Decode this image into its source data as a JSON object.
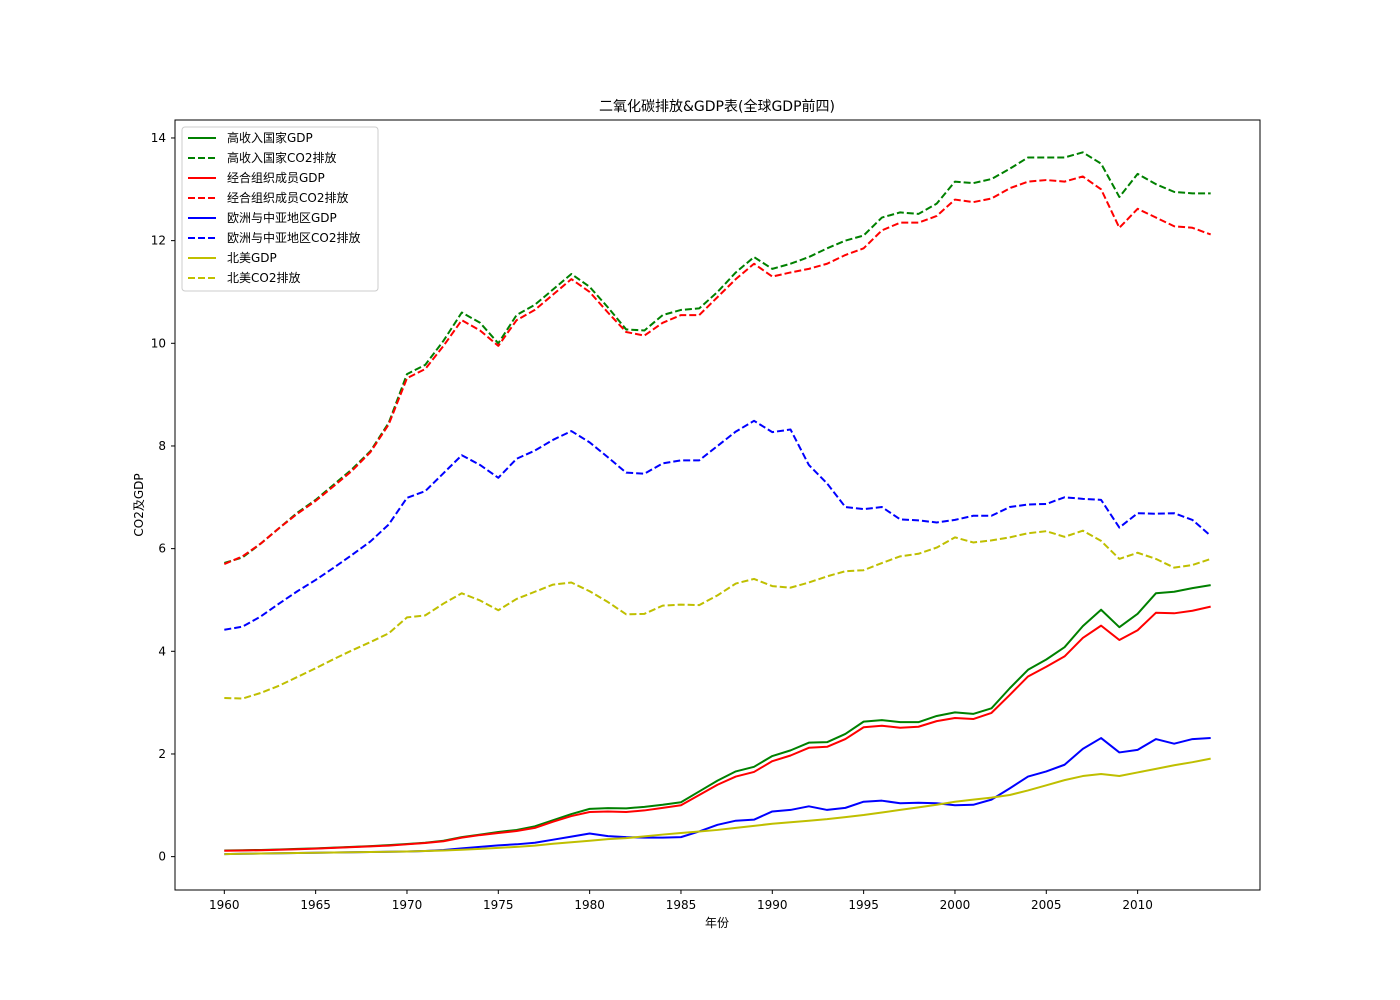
{
  "chart_data": {
    "type": "line",
    "title": "二氧化碳排放&GDP表(全球GDP前四)",
    "xlabel": "年份",
    "ylabel": "CO2及GDP",
    "xlim": [
      1957.3,
      2016.7
    ],
    "ylim": [
      -0.65,
      14.35
    ],
    "x_ticks": [
      1960,
      1965,
      1970,
      1975,
      1980,
      1985,
      1990,
      1995,
      2000,
      2005,
      2010
    ],
    "y_ticks": [
      0,
      2,
      4,
      6,
      8,
      10,
      12,
      14
    ],
    "grid": false,
    "legend_position": "top-left",
    "x": [
      1960,
      1961,
      1962,
      1963,
      1964,
      1965,
      1966,
      1967,
      1968,
      1969,
      1970,
      1971,
      1972,
      1973,
      1974,
      1975,
      1976,
      1977,
      1978,
      1979,
      1980,
      1981,
      1982,
      1983,
      1984,
      1985,
      1986,
      1987,
      1988,
      1989,
      1990,
      1991,
      1992,
      1993,
      1994,
      1995,
      1996,
      1997,
      1998,
      1999,
      2000,
      2001,
      2002,
      2003,
      2004,
      2005,
      2006,
      2007,
      2008,
      2009,
      2010,
      2011,
      2012,
      2013,
      2014
    ],
    "series": [
      {
        "name": "高收入国家GDP",
        "color": "#008000",
        "dash": false,
        "values": [
          0.12,
          0.125,
          0.13,
          0.14,
          0.15,
          0.16,
          0.175,
          0.19,
          0.205,
          0.225,
          0.245,
          0.27,
          0.31,
          0.38,
          0.43,
          0.48,
          0.52,
          0.59,
          0.71,
          0.83,
          0.93,
          0.945,
          0.94,
          0.97,
          1.01,
          1.06,
          1.27,
          1.48,
          1.66,
          1.75,
          1.96,
          2.07,
          2.22,
          2.23,
          2.39,
          2.63,
          2.66,
          2.62,
          2.62,
          2.74,
          2.81,
          2.78,
          2.89,
          3.28,
          3.64,
          3.84,
          4.08,
          4.49,
          4.81,
          4.47,
          4.73,
          5.13,
          5.16,
          5.23,
          5.29
        ]
      },
      {
        "name": "高收入国家CO2排放",
        "color": "#008000",
        "dash": true,
        "values": [
          5.72,
          5.83,
          6.1,
          6.4,
          6.7,
          6.95,
          7.25,
          7.55,
          7.9,
          8.45,
          9.4,
          9.58,
          10.05,
          10.6,
          10.4,
          10.0,
          10.55,
          10.75,
          11.05,
          11.35,
          11.1,
          10.7,
          10.27,
          10.25,
          10.55,
          10.65,
          10.68,
          11.0,
          11.38,
          11.68,
          11.45,
          11.55,
          11.68,
          11.85,
          12.0,
          12.1,
          12.45,
          12.55,
          12.52,
          12.72,
          13.15,
          13.12,
          13.2,
          13.4,
          13.62,
          13.62,
          13.62,
          13.72,
          13.5,
          12.85,
          13.3,
          13.1,
          12.95,
          12.92,
          12.92
        ]
      },
      {
        "name": "经合组织成员GDP",
        "color": "#ff0000",
        "dash": false,
        "values": [
          0.115,
          0.12,
          0.125,
          0.135,
          0.145,
          0.155,
          0.17,
          0.185,
          0.2,
          0.215,
          0.24,
          0.265,
          0.3,
          0.37,
          0.42,
          0.46,
          0.5,
          0.56,
          0.68,
          0.79,
          0.87,
          0.88,
          0.87,
          0.9,
          0.95,
          1.0,
          1.2,
          1.4,
          1.56,
          1.65,
          1.86,
          1.97,
          2.12,
          2.14,
          2.29,
          2.52,
          2.55,
          2.51,
          2.53,
          2.64,
          2.7,
          2.68,
          2.8,
          3.15,
          3.51,
          3.7,
          3.9,
          4.26,
          4.5,
          4.22,
          4.41,
          4.75,
          4.74,
          4.79,
          4.87
        ]
      },
      {
        "name": "经合组织成员CO2排放",
        "color": "#ff0000",
        "dash": true,
        "values": [
          5.7,
          5.85,
          6.1,
          6.4,
          6.68,
          6.93,
          7.22,
          7.52,
          7.88,
          8.42,
          9.32,
          9.5,
          9.95,
          10.45,
          10.25,
          9.95,
          10.45,
          10.65,
          10.95,
          11.25,
          11.0,
          10.6,
          10.22,
          10.15,
          10.4,
          10.55,
          10.55,
          10.9,
          11.25,
          11.55,
          11.3,
          11.38,
          11.45,
          11.55,
          11.72,
          11.85,
          12.2,
          12.35,
          12.35,
          12.48,
          12.8,
          12.75,
          12.82,
          13.02,
          13.15,
          13.18,
          13.15,
          13.25,
          13.0,
          12.25,
          12.62,
          12.45,
          12.28,
          12.25,
          12.12
        ]
      },
      {
        "name": "欧洲与中亚地区GDP",
        "color": "#0000ff",
        "dash": false,
        "values": [
          0.05,
          0.055,
          0.06,
          0.065,
          0.07,
          0.075,
          0.08,
          0.085,
          0.09,
          0.095,
          0.1,
          0.11,
          0.13,
          0.16,
          0.19,
          0.22,
          0.24,
          0.27,
          0.33,
          0.39,
          0.45,
          0.4,
          0.38,
          0.37,
          0.37,
          0.38,
          0.49,
          0.62,
          0.7,
          0.72,
          0.88,
          0.91,
          0.98,
          0.91,
          0.95,
          1.07,
          1.09,
          1.04,
          1.05,
          1.04,
          1.0,
          1.01,
          1.11,
          1.33,
          1.56,
          1.66,
          1.79,
          2.1,
          2.31,
          2.03,
          2.08,
          2.29,
          2.2,
          2.29,
          2.31
        ]
      },
      {
        "name": "欧洲与中亚地区CO2排放",
        "color": "#0000ff",
        "dash": true,
        "values": [
          4.42,
          4.48,
          4.68,
          4.93,
          5.17,
          5.39,
          5.63,
          5.88,
          6.14,
          6.47,
          6.99,
          7.12,
          7.47,
          7.82,
          7.63,
          7.38,
          7.75,
          7.91,
          8.12,
          8.29,
          8.07,
          7.78,
          7.48,
          7.46,
          7.66,
          7.72,
          7.72,
          8.0,
          8.28,
          8.49,
          8.27,
          8.32,
          7.63,
          7.27,
          6.81,
          6.77,
          6.81,
          6.57,
          6.55,
          6.51,
          6.56,
          6.64,
          6.64,
          6.81,
          6.86,
          6.87,
          7.0,
          6.97,
          6.95,
          6.41,
          6.69,
          6.68,
          6.69,
          6.56,
          6.25
        ]
      },
      {
        "name": "北美GDP",
        "color": "#bfbf00",
        "dash": false,
        "values": [
          0.05,
          0.055,
          0.06,
          0.065,
          0.07,
          0.075,
          0.08,
          0.085,
          0.09,
          0.095,
          0.1,
          0.11,
          0.12,
          0.135,
          0.15,
          0.17,
          0.19,
          0.215,
          0.25,
          0.28,
          0.31,
          0.34,
          0.36,
          0.395,
          0.43,
          0.46,
          0.49,
          0.52,
          0.56,
          0.6,
          0.64,
          0.67,
          0.7,
          0.73,
          0.77,
          0.81,
          0.86,
          0.91,
          0.96,
          1.01,
          1.07,
          1.11,
          1.15,
          1.2,
          1.29,
          1.39,
          1.49,
          1.57,
          1.61,
          1.57,
          1.64,
          1.71,
          1.78,
          1.84,
          1.91
        ]
      },
      {
        "name": "北美CO2排放",
        "color": "#bfbf00",
        "dash": true,
        "values": [
          3.09,
          3.08,
          3.19,
          3.33,
          3.5,
          3.67,
          3.85,
          4.02,
          4.18,
          4.35,
          4.66,
          4.7,
          4.93,
          5.13,
          4.99,
          4.8,
          5.02,
          5.16,
          5.3,
          5.34,
          5.17,
          4.96,
          4.72,
          4.73,
          4.89,
          4.91,
          4.9,
          5.09,
          5.32,
          5.41,
          5.27,
          5.24,
          5.34,
          5.46,
          5.56,
          5.58,
          5.72,
          5.85,
          5.9,
          6.02,
          6.22,
          6.12,
          6.16,
          6.22,
          6.3,
          6.34,
          6.23,
          6.35,
          6.15,
          5.8,
          5.92,
          5.8,
          5.63,
          5.68,
          5.8
        ]
      }
    ]
  }
}
